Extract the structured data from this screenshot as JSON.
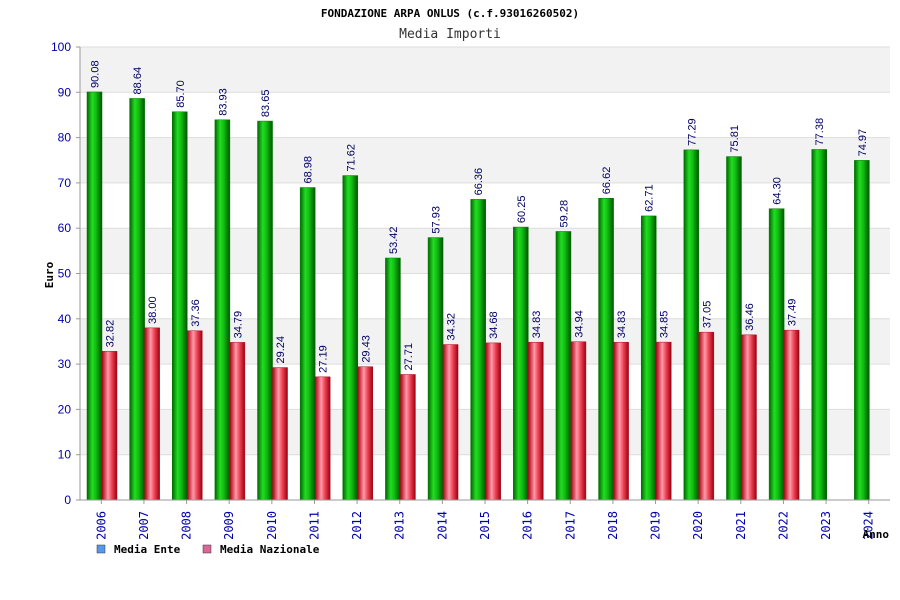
{
  "chart_data": {
    "type": "bar",
    "title": "FONDAZIONE ARPA ONLUS (c.f.93016260502)",
    "subtitle": "Media Importi",
    "xlabel": "Anno",
    "ylabel": "Euro",
    "ylim": [
      0,
      100
    ],
    "yticks": [
      0,
      10,
      20,
      30,
      40,
      50,
      60,
      70,
      80,
      90,
      100
    ],
    "categories": [
      "2006",
      "2007",
      "2008",
      "2009",
      "2010",
      "2011",
      "2012",
      "2013",
      "2014",
      "2015",
      "2016",
      "2017",
      "2018",
      "2019",
      "2020",
      "2021",
      "2022",
      "2023",
      "2024"
    ],
    "series": [
      {
        "name": "Media Ente",
        "values": [
          90.08,
          88.64,
          85.7,
          83.93,
          83.65,
          68.98,
          71.62,
          53.42,
          57.93,
          66.36,
          60.25,
          59.28,
          66.62,
          62.71,
          77.29,
          75.81,
          64.3,
          77.38,
          74.97
        ],
        "labels": [
          "90.08",
          "88.64",
          "85.70",
          "83.93",
          "83.65",
          "68.98",
          "71.62",
          "53.42",
          "57.93",
          "66.36",
          "60.25",
          "59.28",
          "66.62",
          "62.71",
          "77.29",
          "75.81",
          "64.30",
          "77.38",
          "74.97"
        ],
        "color": "#00aa00",
        "legend_color": "#5599ee"
      },
      {
        "name": "Media Nazionale",
        "values": [
          32.82,
          38.0,
          37.36,
          34.79,
          29.24,
          27.19,
          29.43,
          27.71,
          34.32,
          34.68,
          34.83,
          34.94,
          34.83,
          34.85,
          37.05,
          36.46,
          37.49,
          null,
          null
        ],
        "labels": [
          "32.82",
          "38.00",
          "37.36",
          "34.79",
          "29.24",
          "27.19",
          "29.43",
          "27.71",
          "34.32",
          "34.68",
          "34.83",
          "34.94",
          "34.83",
          "34.85",
          "37.05",
          "36.46",
          "37.49",
          "",
          ""
        ],
        "color": "#dd2233",
        "legend_color": "#dd6699"
      }
    ],
    "grid": true
  }
}
